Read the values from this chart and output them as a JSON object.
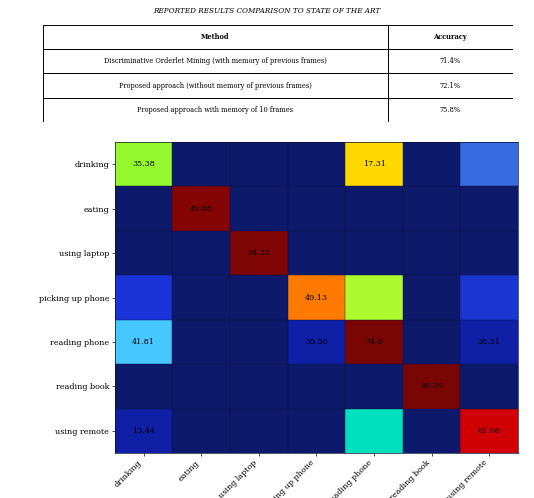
{
  "title": "REPORTED RESULTS COMPARISON TO STATE OF THE ART",
  "table": {
    "headers": [
      "Method",
      "Accuracy"
    ],
    "rows": [
      [
        "Discriminative Orderlet Mining (with memory of previous frames)",
        "71.4%"
      ],
      [
        "Proposed approach (without memory of previous frames)",
        "72.1%"
      ],
      [
        "Proposed approach with memory of 10 frames",
        "75.8%"
      ]
    ]
  },
  "classes": [
    "drinking",
    "eating",
    "using laptop",
    "picking up phone",
    "reading phone",
    "reading book",
    "using remote"
  ],
  "shown_values": {
    "0,0": "35.38",
    "0,4": "17.31",
    "1,1": "49.88",
    "2,2": "54.35",
    "3,3": "49.13",
    "4,0": "41.81",
    "4,3": "35.50",
    "4,4": "74.6",
    "4,6": "28.31",
    "5,5": "99.29",
    "6,0": "13.44",
    "6,6": "61.06"
  },
  "cell_colors": {
    "0,0": [
      0.58,
      0.98,
      0.18
    ],
    "0,4": [
      1.0,
      0.85,
      0.0
    ],
    "0,6": [
      0.22,
      0.42,
      0.88
    ],
    "1,1": [
      0.52,
      0.02,
      0.02
    ],
    "2,2": [
      0.5,
      0.02,
      0.02
    ],
    "3,0": [
      0.1,
      0.2,
      0.85
    ],
    "3,3": [
      1.0,
      0.48,
      0.0
    ],
    "3,4": [
      0.68,
      0.98,
      0.18
    ],
    "3,6": [
      0.1,
      0.22,
      0.82
    ],
    "4,0": [
      0.28,
      0.78,
      1.0
    ],
    "4,3": [
      0.06,
      0.12,
      0.65
    ],
    "4,4": [
      0.48,
      0.02,
      0.02
    ],
    "4,6": [
      0.06,
      0.12,
      0.65
    ],
    "5,5": [
      0.48,
      0.02,
      0.02
    ],
    "6,0": [
      0.06,
      0.12,
      0.65
    ],
    "6,4": [
      0.0,
      0.88,
      0.75
    ],
    "6,6": [
      0.82,
      0.0,
      0.02
    ]
  },
  "default_bg": [
    0.05,
    0.1,
    0.42
  ],
  "figsize": [
    5.34,
    4.98
  ],
  "dpi": 100
}
